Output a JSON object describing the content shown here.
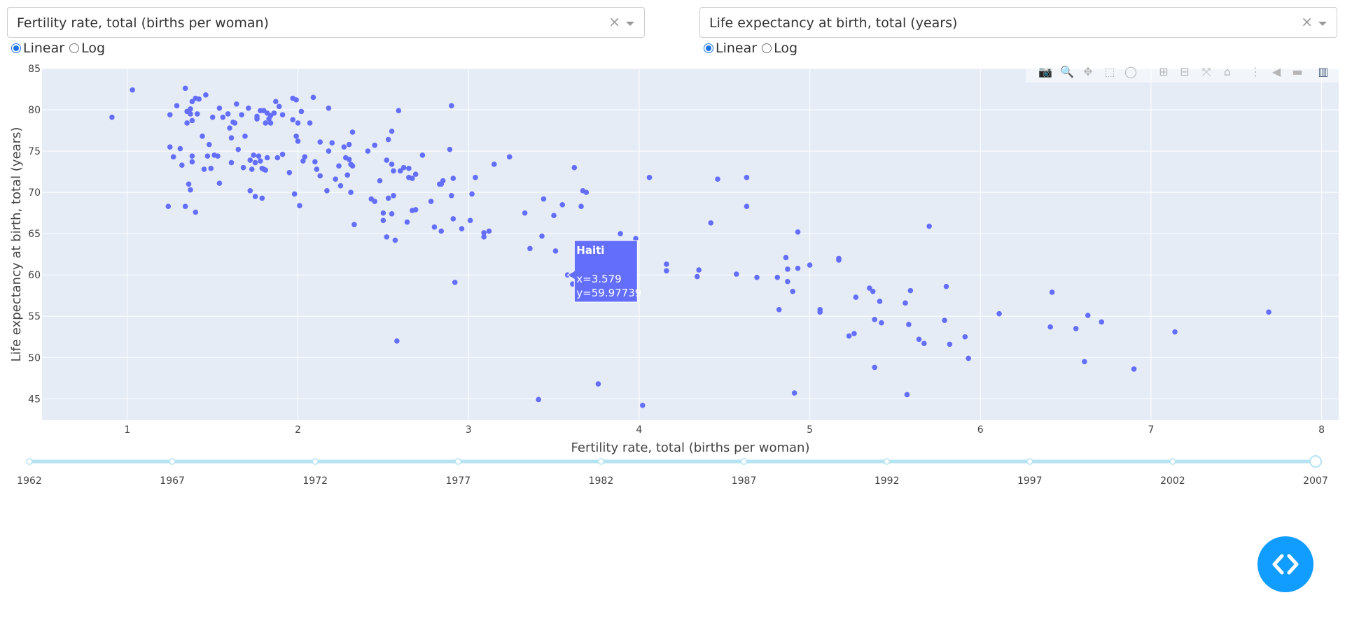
{
  "controls": {
    "x_dropdown": {
      "value": "Fertility rate, total (births per woman)",
      "clear_icon": "×"
    },
    "y_dropdown": {
      "value": "Life expectancy at birth, total (years)",
      "clear_icon": "×"
    },
    "x_scale": {
      "options": [
        "Linear",
        "Log"
      ],
      "selected": "Linear"
    },
    "y_scale": {
      "options": [
        "Linear",
        "Log"
      ],
      "selected": "Linear"
    }
  },
  "modebar": {
    "buttons": [
      {
        "name": "camera-icon",
        "glyph": "📷"
      },
      {
        "name": "zoom-icon",
        "glyph": "🔍"
      },
      {
        "name": "pan-icon",
        "glyph": "✥"
      },
      {
        "name": "box-select-icon",
        "glyph": "⬚"
      },
      {
        "name": "lasso-select-icon",
        "glyph": "◯"
      },
      {
        "name": "zoom-in-icon",
        "glyph": "⊞"
      },
      {
        "name": "zoom-out-icon",
        "glyph": "⊟"
      },
      {
        "name": "autoscale-icon",
        "glyph": "⤧"
      },
      {
        "name": "reset-axes-icon",
        "glyph": "⌂"
      },
      {
        "name": "spike-lines-icon",
        "glyph": "⋮"
      },
      {
        "name": "hover-closest-icon",
        "glyph": "◀"
      },
      {
        "name": "hover-compare-icon",
        "glyph": "▬"
      },
      {
        "name": "plotly-logo-icon",
        "glyph": "▥"
      }
    ]
  },
  "chart_data": {
    "type": "scatter",
    "xlabel": "Fertility rate, total (births per woman)",
    "ylabel": "Life expectancy at birth, total (years)",
    "xlim": [
      0.5,
      8.1
    ],
    "ylim": [
      42.4,
      85
    ],
    "x_ticks": [
      1,
      2,
      3,
      4,
      5,
      6,
      7,
      8
    ],
    "y_ticks": [
      45,
      50,
      55,
      60,
      65,
      70,
      75,
      80,
      85
    ],
    "grid": true,
    "marker_color": "#636efa",
    "plot_bg": "#e5ecf6",
    "hover": {
      "country": "Haiti",
      "x_text": "x=3.579",
      "y_text": "y=59.97739",
      "x": 3.579,
      "y": 59.97739
    },
    "points": [
      [
        0.91,
        79.1
      ],
      [
        1.03,
        82.4
      ],
      [
        1.24,
        68.3
      ],
      [
        1.25,
        79.4
      ],
      [
        1.25,
        75.5
      ],
      [
        1.27,
        74.3
      ],
      [
        1.29,
        80.5
      ],
      [
        1.31,
        75.3
      ],
      [
        1.32,
        73.3
      ],
      [
        1.34,
        82.6
      ],
      [
        1.34,
        68.3
      ],
      [
        1.35,
        79.8
      ],
      [
        1.35,
        78.4
      ],
      [
        1.36,
        71.0
      ],
      [
        1.37,
        79.5
      ],
      [
        1.37,
        80.1
      ],
      [
        1.37,
        70.3
      ],
      [
        1.38,
        81.0
      ],
      [
        1.38,
        78.7
      ],
      [
        1.38,
        74.4
      ],
      [
        1.38,
        73.7
      ],
      [
        1.4,
        81.4
      ],
      [
        1.4,
        67.6
      ],
      [
        1.41,
        79.5
      ],
      [
        1.42,
        81.3
      ],
      [
        1.44,
        76.8
      ],
      [
        1.45,
        72.8
      ],
      [
        1.46,
        81.8
      ],
      [
        1.47,
        74.4
      ],
      [
        1.48,
        75.8
      ],
      [
        1.49,
        72.9
      ],
      [
        1.5,
        79.1
      ],
      [
        1.51,
        74.5
      ],
      [
        1.53,
        74.4
      ],
      [
        1.54,
        71.1
      ],
      [
        1.54,
        80.2
      ],
      [
        1.56,
        79.1
      ],
      [
        1.59,
        79.5
      ],
      [
        1.6,
        77.8
      ],
      [
        1.61,
        76.6
      ],
      [
        1.61,
        73.6
      ],
      [
        1.62,
        78.5
      ],
      [
        1.63,
        78.4
      ],
      [
        1.64,
        80.7
      ],
      [
        1.65,
        75.2
      ],
      [
        1.67,
        79.4
      ],
      [
        1.68,
        73.0
      ],
      [
        1.69,
        76.8
      ],
      [
        1.71,
        80.2
      ],
      [
        1.72,
        70.2
      ],
      [
        1.72,
        73.9
      ],
      [
        1.73,
        72.8
      ],
      [
        1.74,
        74.5
      ],
      [
        1.75,
        69.5
      ],
      [
        1.75,
        73.6
      ],
      [
        1.76,
        78.9
      ],
      [
        1.76,
        79.2
      ],
      [
        1.77,
        74.4
      ],
      [
        1.78,
        79.9
      ],
      [
        1.78,
        73.8
      ],
      [
        1.79,
        72.9
      ],
      [
        1.79,
        69.3
      ],
      [
        1.8,
        72.8
      ],
      [
        1.8,
        79.9
      ],
      [
        1.81,
        78.4
      ],
      [
        1.81,
        72.7
      ],
      [
        1.82,
        74.2
      ],
      [
        1.82,
        79.6
      ],
      [
        1.83,
        78.9
      ],
      [
        1.84,
        79.3
      ],
      [
        1.84,
        78.4
      ],
      [
        1.86,
        79.6
      ],
      [
        1.87,
        81.0
      ],
      [
        1.88,
        74.2
      ],
      [
        1.89,
        80.4
      ],
      [
        1.91,
        79.4
      ],
      [
        1.91,
        74.6
      ],
      [
        1.95,
        72.4
      ],
      [
        1.97,
        81.4
      ],
      [
        1.97,
        78.8
      ],
      [
        1.98,
        69.8
      ],
      [
        1.99,
        81.2
      ],
      [
        1.99,
        76.8
      ],
      [
        2.0,
        76.2
      ],
      [
        2.0,
        78.4
      ],
      [
        2.01,
        68.4
      ],
      [
        2.02,
        79.8
      ],
      [
        2.03,
        73.8
      ],
      [
        2.04,
        74.3
      ],
      [
        2.07,
        78.4
      ],
      [
        2.09,
        81.5
      ],
      [
        2.1,
        73.7
      ],
      [
        2.11,
        72.8
      ],
      [
        2.13,
        76.1
      ],
      [
        2.13,
        72.0
      ],
      [
        2.17,
        70.2
      ],
      [
        2.18,
        80.2
      ],
      [
        2.18,
        75.0
      ],
      [
        2.2,
        76.0
      ],
      [
        2.22,
        71.6
      ],
      [
        2.24,
        73.2
      ],
      [
        2.25,
        70.8
      ],
      [
        2.27,
        75.5
      ],
      [
        2.28,
        74.2
      ],
      [
        2.29,
        72.1
      ],
      [
        2.3,
        75.8
      ],
      [
        2.3,
        74.0
      ],
      [
        2.31,
        73.4
      ],
      [
        2.31,
        70.0
      ],
      [
        2.32,
        77.3
      ],
      [
        2.32,
        73.2
      ],
      [
        2.33,
        66.1
      ],
      [
        2.41,
        75.0
      ],
      [
        2.43,
        69.2
      ],
      [
        2.45,
        75.7
      ],
      [
        2.45,
        68.9
      ],
      [
        2.48,
        71.4
      ],
      [
        2.5,
        67.5
      ],
      [
        2.5,
        66.6
      ],
      [
        2.52,
        73.9
      ],
      [
        2.52,
        64.6
      ],
      [
        2.53,
        76.4
      ],
      [
        2.53,
        69.3
      ],
      [
        2.55,
        77.4
      ],
      [
        2.55,
        73.4
      ],
      [
        2.55,
        67.4
      ],
      [
        2.56,
        69.6
      ],
      [
        2.56,
        72.6
      ],
      [
        2.57,
        64.2
      ],
      [
        2.58,
        52.0
      ],
      [
        2.59,
        79.9
      ],
      [
        2.6,
        72.6
      ],
      [
        2.62,
        73.0
      ],
      [
        2.64,
        66.4
      ],
      [
        2.65,
        71.8
      ],
      [
        2.65,
        72.9
      ],
      [
        2.67,
        67.8
      ],
      [
        2.67,
        71.7
      ],
      [
        2.69,
        72.2
      ],
      [
        2.69,
        67.9
      ],
      [
        2.73,
        74.5
      ],
      [
        2.78,
        68.9
      ],
      [
        2.8,
        65.8
      ],
      [
        2.83,
        71.0
      ],
      [
        2.84,
        71.0
      ],
      [
        2.84,
        65.3
      ],
      [
        2.85,
        71.4
      ],
      [
        2.89,
        75.2
      ],
      [
        2.9,
        80.5
      ],
      [
        2.9,
        69.6
      ],
      [
        2.91,
        66.8
      ],
      [
        2.91,
        71.7
      ],
      [
        2.92,
        59.1
      ],
      [
        2.96,
        65.6
      ],
      [
        3.01,
        66.6
      ],
      [
        3.02,
        69.8
      ],
      [
        3.04,
        71.8
      ],
      [
        3.09,
        64.6
      ],
      [
        3.09,
        65.1
      ],
      [
        3.12,
        65.3
      ],
      [
        3.15,
        73.4
      ],
      [
        3.24,
        74.3
      ],
      [
        3.33,
        67.5
      ],
      [
        3.36,
        63.2
      ],
      [
        3.41,
        44.9
      ],
      [
        3.43,
        64.7
      ],
      [
        3.44,
        69.2
      ],
      [
        3.5,
        67.2
      ],
      [
        3.51,
        62.9
      ],
      [
        3.55,
        68.5
      ],
      [
        3.58,
        60.0
      ],
      [
        3.61,
        58.9
      ],
      [
        3.62,
        73.0
      ],
      [
        3.66,
        68.3
      ],
      [
        3.67,
        70.2
      ],
      [
        3.69,
        70.0
      ],
      [
        3.76,
        46.8
      ],
      [
        3.89,
        65.0
      ],
      [
        3.98,
        64.4
      ],
      [
        4.02,
        44.2
      ],
      [
        4.06,
        71.8
      ],
      [
        4.16,
        61.3
      ],
      [
        4.16,
        60.5
      ],
      [
        4.34,
        59.8
      ],
      [
        4.35,
        60.6
      ],
      [
        4.42,
        66.3
      ],
      [
        4.46,
        71.6
      ],
      [
        4.57,
        60.1
      ],
      [
        4.63,
        71.8
      ],
      [
        4.63,
        68.3
      ],
      [
        4.69,
        59.7
      ],
      [
        4.81,
        59.7
      ],
      [
        4.82,
        55.8
      ],
      [
        4.86,
        62.1
      ],
      [
        4.87,
        59.2
      ],
      [
        4.87,
        60.7
      ],
      [
        4.9,
        58.0
      ],
      [
        4.91,
        45.7
      ],
      [
        4.93,
        65.2
      ],
      [
        4.93,
        60.8
      ],
      [
        5.0,
        61.2
      ],
      [
        5.06,
        55.8
      ],
      [
        5.06,
        55.5
      ],
      [
        5.17,
        62.0
      ],
      [
        5.17,
        61.8
      ],
      [
        5.23,
        52.6
      ],
      [
        5.26,
        52.9
      ],
      [
        5.27,
        57.3
      ],
      [
        5.35,
        58.4
      ],
      [
        5.37,
        58.0
      ],
      [
        5.38,
        48.8
      ],
      [
        5.38,
        54.6
      ],
      [
        5.41,
        56.8
      ],
      [
        5.42,
        54.2
      ],
      [
        5.56,
        56.6
      ],
      [
        5.57,
        45.5
      ],
      [
        5.58,
        54.0
      ],
      [
        5.59,
        58.1
      ],
      [
        5.64,
        52.2
      ],
      [
        5.67,
        51.7
      ],
      [
        5.7,
        65.9
      ],
      [
        5.79,
        54.5
      ],
      [
        5.8,
        58.6
      ],
      [
        5.82,
        51.6
      ],
      [
        5.91,
        52.5
      ],
      [
        5.93,
        49.9
      ],
      [
        6.11,
        55.3
      ],
      [
        6.42,
        57.9
      ],
      [
        6.41,
        53.7
      ],
      [
        6.56,
        53.5
      ],
      [
        6.61,
        49.5
      ],
      [
        6.63,
        55.1
      ],
      [
        6.71,
        54.3
      ],
      [
        6.9,
        48.6
      ],
      [
        7.14,
        53.1
      ],
      [
        7.69,
        55.5
      ]
    ]
  },
  "slider": {
    "labels": [
      "1962",
      "1967",
      "1972",
      "1977",
      "1982",
      "1987",
      "1992",
      "1997",
      "2002",
      "2007"
    ],
    "selected": "2007",
    "track_color": "#b6e3f1"
  },
  "code_button": {
    "icon": "code-icon"
  }
}
